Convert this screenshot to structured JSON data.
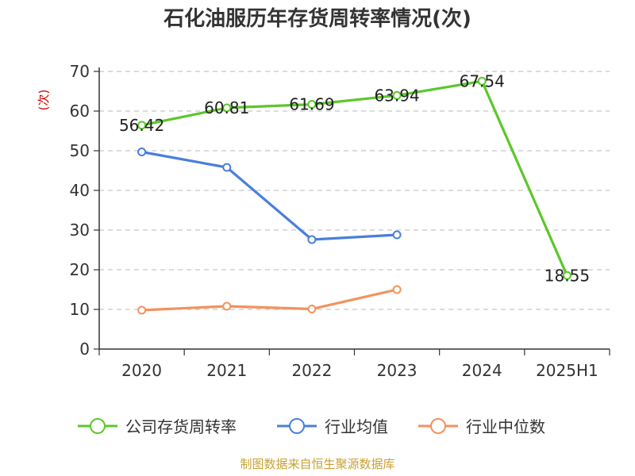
{
  "chart_data": {
    "type": "line",
    "title": "石化油服历年存货周转率情况(次)",
    "ylabel": "(次)",
    "categories": [
      "2020",
      "2021",
      "2022",
      "2023",
      "2024",
      "2025H1"
    ],
    "yticks": [
      "0",
      "10",
      "20",
      "30",
      "40",
      "50",
      "60",
      "70"
    ],
    "ylim": [
      0,
      70
    ],
    "grid": true,
    "legend_position": "bottom",
    "series": [
      {
        "name": "公司存货周转率",
        "color": "#5cc72b",
        "values": [
          56.42,
          60.81,
          61.69,
          63.94,
          67.54,
          18.55
        ],
        "labels": [
          "56.42",
          "60.81",
          "61.69",
          "63.94",
          "67.54",
          "18.55"
        ]
      },
      {
        "name": "行业均值",
        "color": "#4b7fd9",
        "values": [
          49.7,
          45.8,
          27.6,
          28.8,
          null,
          null
        ]
      },
      {
        "name": "行业中位数",
        "color": "#f2925c",
        "values": [
          9.8,
          10.8,
          10.1,
          15.0,
          null,
          null
        ]
      }
    ],
    "source": "制图数据来自恒生聚源数据库"
  }
}
